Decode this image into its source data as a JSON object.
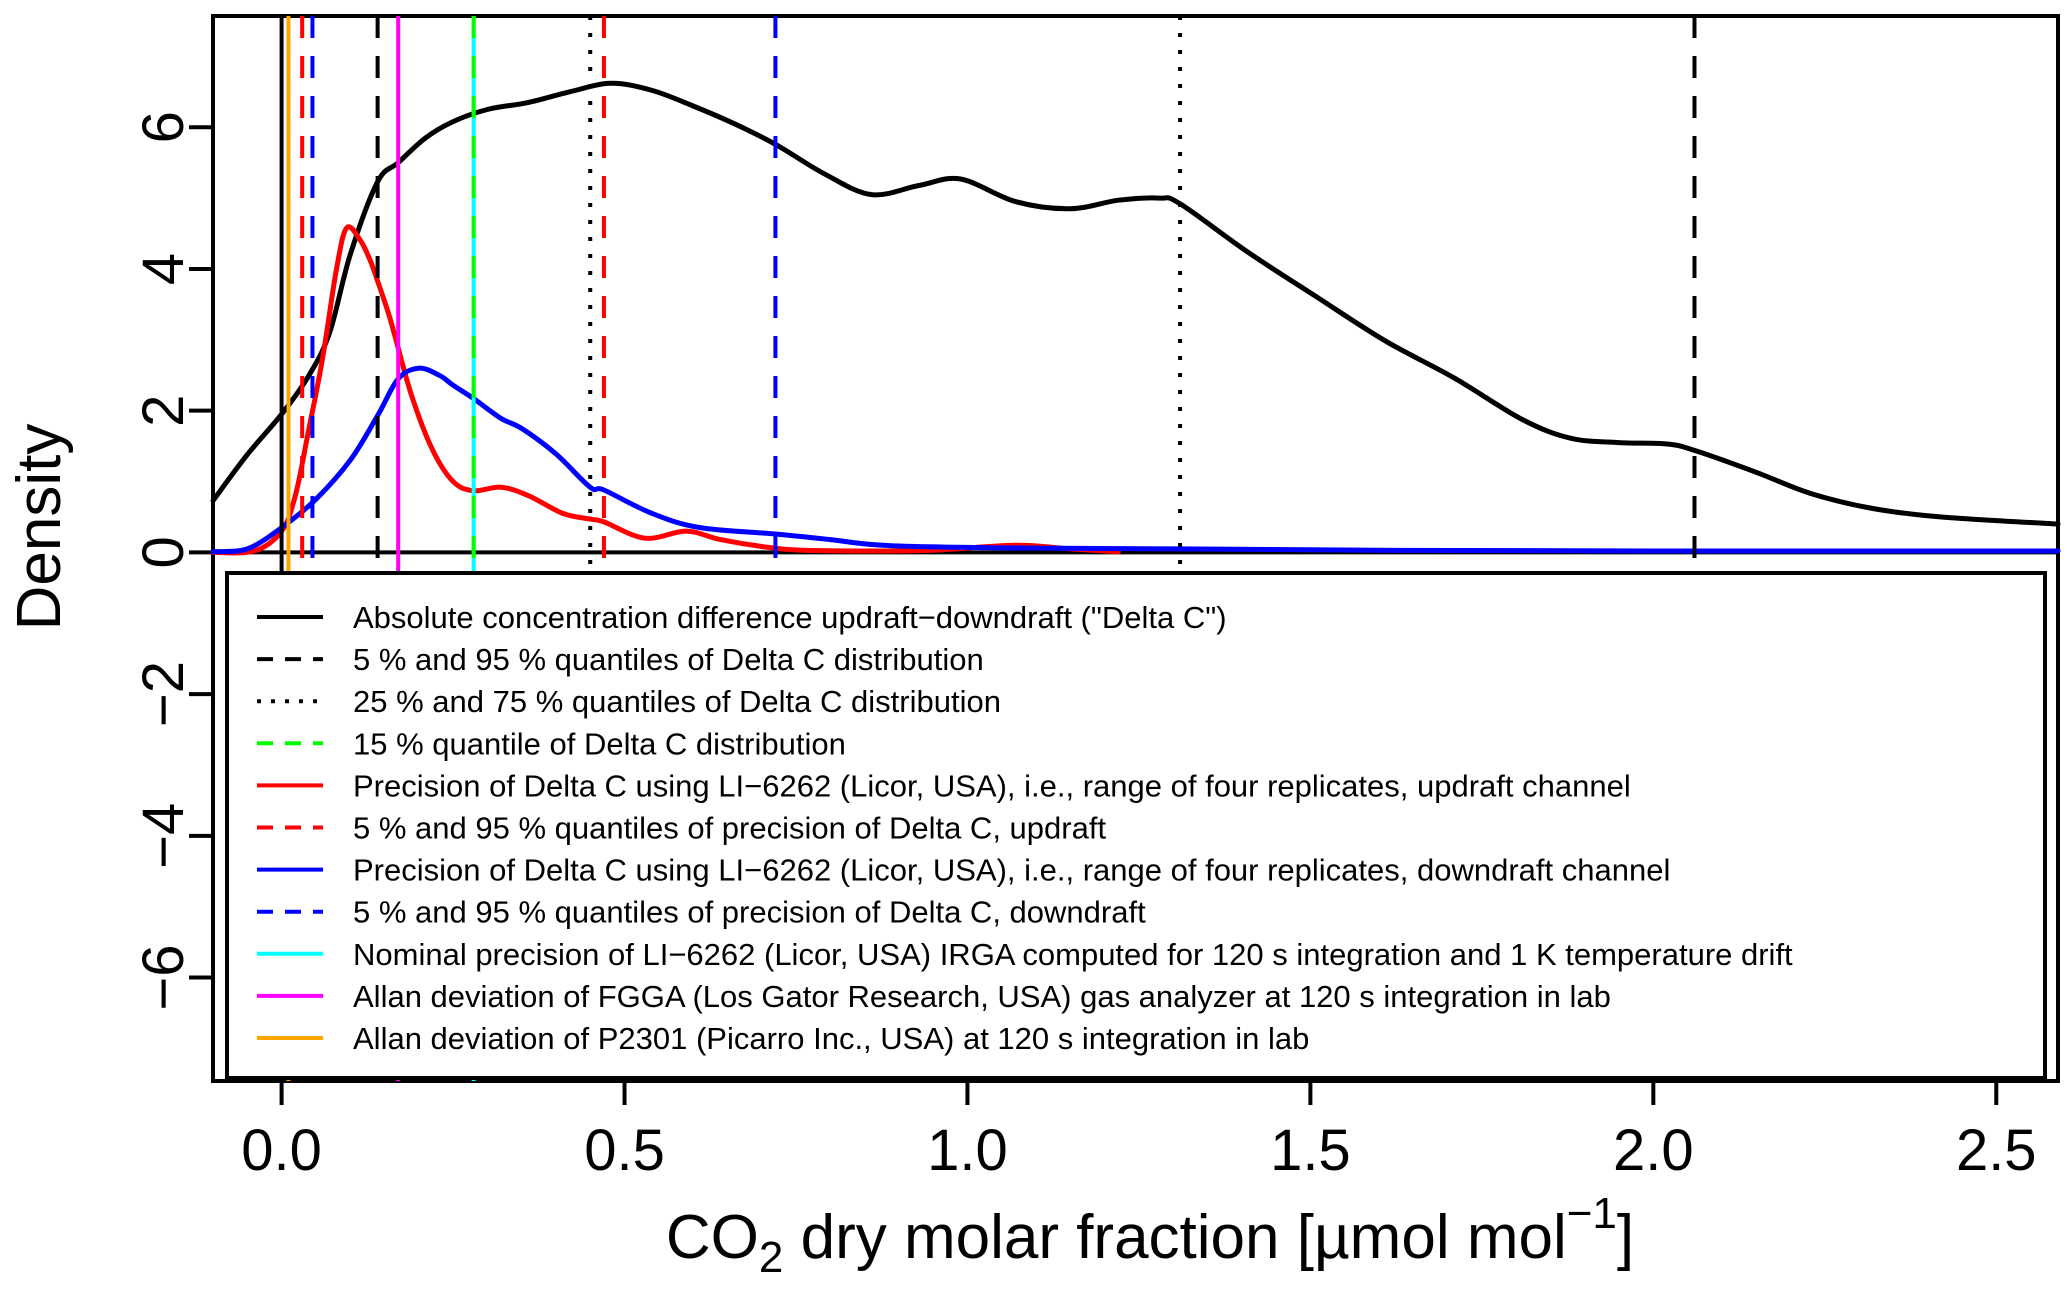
{
  "figure": {
    "background": "#ffffff",
    "xlabel_parts": {
      "pre": "CO",
      "sub": "2",
      "mid": " dry molar fraction [µmol mol",
      "sup": "−1",
      "post": "]"
    }
  },
  "chart_data": {
    "type": "line",
    "title": "",
    "xlabel": "CO2 dry molar fraction [µmol mol−1]",
    "ylabel": "Density",
    "xlim": [
      -0.1,
      2.59
    ],
    "ylim": [
      -7.46,
      7.57
    ],
    "grid": false,
    "legend_position": "inside-bottom",
    "x_ticks": [
      0.0,
      0.5,
      1.0,
      1.5,
      2.0,
      2.5
    ],
    "x_tick_labels": [
      "0.0",
      "0.5",
      "1.0",
      "1.5",
      "2.0",
      "2.5"
    ],
    "y_ticks": [
      6,
      4,
      2,
      0,
      -2,
      -4,
      -6
    ],
    "y_tick_labels": [
      "6",
      "4",
      "2",
      "0",
      "−2",
      "−4",
      "−6"
    ],
    "series": [
      {
        "name": "delta-c-density",
        "label": "Absolute concentration difference updraft−downdraft (\"Delta C\")",
        "color": "#000000",
        "style": "solid",
        "points": [
          [
            -0.1,
            0.73
          ],
          [
            -0.05,
            1.38
          ],
          [
            0.0,
            1.95
          ],
          [
            0.04,
            2.5
          ],
          [
            0.07,
            3.1
          ],
          [
            0.1,
            4.2
          ],
          [
            0.14,
            5.23
          ],
          [
            0.17,
            5.5
          ],
          [
            0.21,
            5.85
          ],
          [
            0.25,
            6.08
          ],
          [
            0.3,
            6.25
          ],
          [
            0.36,
            6.35
          ],
          [
            0.42,
            6.5
          ],
          [
            0.48,
            6.62
          ],
          [
            0.54,
            6.52
          ],
          [
            0.6,
            6.3
          ],
          [
            0.66,
            6.05
          ],
          [
            0.72,
            5.76
          ],
          [
            0.79,
            5.35
          ],
          [
            0.86,
            5.05
          ],
          [
            0.93,
            5.18
          ],
          [
            0.99,
            5.27
          ],
          [
            1.07,
            4.95
          ],
          [
            1.15,
            4.85
          ],
          [
            1.22,
            4.97
          ],
          [
            1.28,
            5.0
          ],
          [
            1.31,
            4.92
          ],
          [
            1.41,
            4.23
          ],
          [
            1.51,
            3.6
          ],
          [
            1.61,
            2.98
          ],
          [
            1.71,
            2.46
          ],
          [
            1.81,
            1.87
          ],
          [
            1.88,
            1.61
          ],
          [
            1.95,
            1.55
          ],
          [
            2.02,
            1.53
          ],
          [
            2.06,
            1.44
          ],
          [
            2.15,
            1.13
          ],
          [
            2.23,
            0.83
          ],
          [
            2.32,
            0.62
          ],
          [
            2.42,
            0.5
          ],
          [
            2.59,
            0.4
          ]
        ]
      },
      {
        "name": "precision-updraft",
        "label": "Precision of Delta C using LI−6262 (Licor, USA), i.e., range of four replicates, updraft channel",
        "color": "#FF0000",
        "style": "solid",
        "points": [
          [
            -0.1,
            0.0
          ],
          [
            -0.04,
            0.02
          ],
          [
            0.0,
            0.3
          ],
          [
            0.02,
            0.8
          ],
          [
            0.04,
            1.75
          ],
          [
            0.06,
            2.75
          ],
          [
            0.08,
            4.0
          ],
          [
            0.095,
            4.58
          ],
          [
            0.115,
            4.4
          ],
          [
            0.13,
            4.1
          ],
          [
            0.141,
            3.8
          ],
          [
            0.155,
            3.4
          ],
          [
            0.166,
            3.03
          ],
          [
            0.19,
            2.2
          ],
          [
            0.22,
            1.45
          ],
          [
            0.25,
            1.0
          ],
          [
            0.28,
            0.87
          ],
          [
            0.32,
            0.92
          ],
          [
            0.36,
            0.8
          ],
          [
            0.41,
            0.55
          ],
          [
            0.45,
            0.47
          ],
          [
            0.47,
            0.43
          ],
          [
            0.53,
            0.2
          ],
          [
            0.59,
            0.3
          ],
          [
            0.64,
            0.18
          ],
          [
            0.71,
            0.07
          ],
          [
            0.76,
            0.03
          ],
          [
            0.85,
            0.02
          ],
          [
            0.95,
            0.03
          ],
          [
            1.07,
            0.1
          ],
          [
            1.15,
            0.05
          ],
          [
            1.22,
            0.01
          ]
        ]
      },
      {
        "name": "precision-downdraft",
        "label": "Precision of Delta C using LI−6262 (Licor, USA), i.e., range of four replicates, downdraft channel",
        "color": "#0000FF",
        "style": "solid",
        "points": [
          [
            -0.1,
            0.01
          ],
          [
            -0.05,
            0.05
          ],
          [
            0.0,
            0.35
          ],
          [
            0.05,
            0.75
          ],
          [
            0.1,
            1.3
          ],
          [
            0.14,
            1.93
          ],
          [
            0.17,
            2.45
          ],
          [
            0.2,
            2.6
          ],
          [
            0.23,
            2.5
          ],
          [
            0.25,
            2.36
          ],
          [
            0.28,
            2.17
          ],
          [
            0.32,
            1.89
          ],
          [
            0.35,
            1.75
          ],
          [
            0.4,
            1.39
          ],
          [
            0.45,
            0.92
          ],
          [
            0.47,
            0.88
          ],
          [
            0.54,
            0.55
          ],
          [
            0.61,
            0.35
          ],
          [
            0.72,
            0.26
          ],
          [
            0.8,
            0.18
          ],
          [
            0.85,
            0.12
          ],
          [
            0.9,
            0.09
          ],
          [
            1.0,
            0.07
          ],
          [
            1.1,
            0.06
          ],
          [
            1.31,
            0.05
          ],
          [
            1.6,
            0.03
          ],
          [
            2.0,
            0.02
          ],
          [
            2.59,
            0.02
          ]
        ]
      }
    ],
    "hlines": [
      {
        "name": "zero-axis-line",
        "y": 0,
        "color": "#000000",
        "style": "solid"
      }
    ],
    "vlines": [
      {
        "name": "zero-reference-line",
        "x": 0.0,
        "color": "#000000",
        "style": "solid"
      },
      {
        "name": "delta-c-quantile-5",
        "x": 0.14,
        "color": "#000000",
        "style": "dashed"
      },
      {
        "name": "delta-c-quantile-95",
        "x": 2.06,
        "color": "#000000",
        "style": "dashed"
      },
      {
        "name": "delta-c-quantile-25",
        "x": 0.45,
        "color": "#000000",
        "style": "dotted"
      },
      {
        "name": "delta-c-quantile-75",
        "x": 1.31,
        "color": "#000000",
        "style": "dotted"
      },
      {
        "name": "nominal-precision-li6262",
        "x": 0.28,
        "color": "#00FFFF",
        "style": "solid"
      },
      {
        "name": "delta-c-quantile-15",
        "x": 0.28,
        "color": "#00FF00",
        "style": "dashed"
      },
      {
        "name": "precision-updraft-quantile-5",
        "x": 0.03,
        "color": "#FF0000",
        "style": "dashed"
      },
      {
        "name": "precision-updraft-quantile-95",
        "x": 0.47,
        "color": "#FF0000",
        "style": "dashed"
      },
      {
        "name": "precision-downdraft-quantile-5",
        "x": 0.045,
        "color": "#0000FF",
        "style": "dashed"
      },
      {
        "name": "precision-downdraft-quantile-95",
        "x": 0.72,
        "color": "#0000FF",
        "style": "dashed"
      },
      {
        "name": "allan-deviation-fgga",
        "x": 0.17,
        "color": "#FF00FF",
        "style": "solid"
      },
      {
        "name": "allan-deviation-p2301",
        "x": 0.01,
        "color": "#FFA500",
        "style": "solid"
      }
    ],
    "legend": {
      "items": [
        {
          "label": "Absolute concentration difference updraft−downdraft (\"Delta C\")",
          "color": "#000000",
          "style": "solid"
        },
        {
          "label": "5 % and 95 % quantiles of Delta C distribution",
          "color": "#000000",
          "style": "dashed"
        },
        {
          "label": "25 % and 75 % quantiles of Delta C distribution",
          "color": "#000000",
          "style": "dotted"
        },
        {
          "label": "15 % quantile of Delta C distribution",
          "color": "#00FF00",
          "style": "dashed"
        },
        {
          "label": "Precision of Delta C using LI−6262 (Licor, USA), i.e., range of four replicates, updraft channel",
          "color": "#FF0000",
          "style": "solid"
        },
        {
          "label": "5 % and 95 % quantiles of precision of Delta C, updraft",
          "color": "#FF0000",
          "style": "dashed"
        },
        {
          "label": "Precision of Delta C using LI−6262 (Licor, USA), i.e., range of four replicates, downdraft channel",
          "color": "#0000FF",
          "style": "solid"
        },
        {
          "label": "5 % and 95 % quantiles of precision of Delta C, downdraft",
          "color": "#0000FF",
          "style": "dashed"
        },
        {
          "label": "Nominal precision of LI−6262 (Licor, USA) IRGA computed for 120 s integration and 1 K temperature drift",
          "color": "#00FFFF",
          "style": "solid"
        },
        {
          "label": "Allan deviation of FGGA (Los Gator Research, USA) gas analyzer at 120 s integration in lab",
          "color": "#FF00FF",
          "style": "solid"
        },
        {
          "label": "Allan deviation of P2301 (Picarro Inc., USA) at 120 s integration in lab",
          "color": "#FFA500",
          "style": "solid"
        }
      ]
    }
  }
}
